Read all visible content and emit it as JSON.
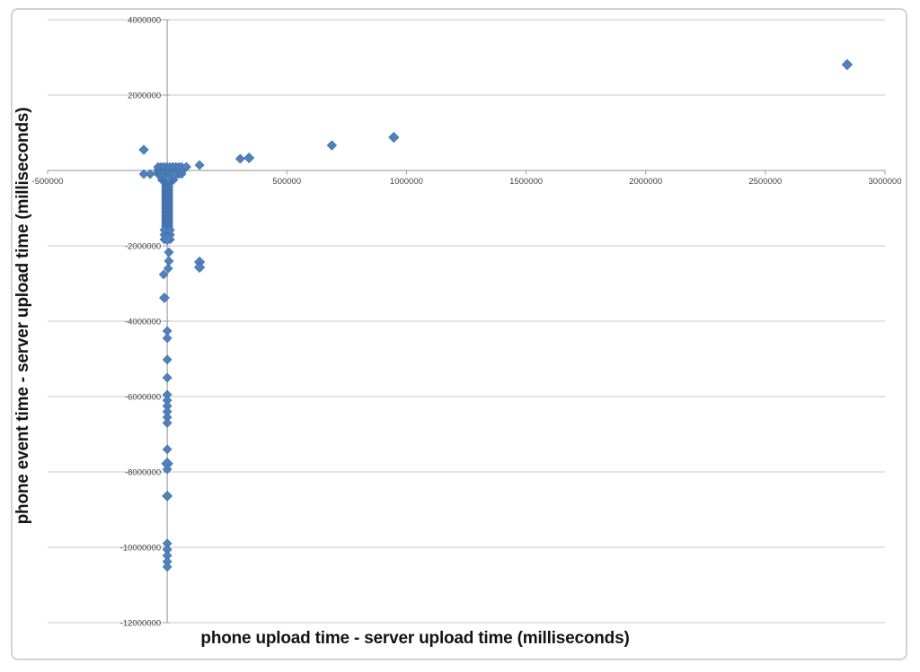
{
  "figure": {
    "background": "#ffffff",
    "frame_color": "#d2d2d2"
  },
  "chart_data": {
    "type": "scatter",
    "title": "",
    "xlabel": "phone upload time - server upload time (milliseconds)",
    "ylabel": "phone event time - server upload time (milliseconds)",
    "xlim": [
      -500000,
      3000000
    ],
    "ylim": [
      -12000000,
      4000000
    ],
    "x_ticks": [
      -500000,
      0,
      500000,
      1000000,
      1500000,
      2000000,
      2500000,
      3000000
    ],
    "y_ticks": [
      4000000,
      2000000,
      0,
      -2000000,
      -4000000,
      -6000000,
      -8000000,
      -10000000,
      -12000000
    ],
    "grid": "horizontal",
    "legend": "none",
    "marker_shape": "diamond",
    "marker_color": "#4f81bd",
    "marker_edge_color": "#3f6ea5",
    "axis_color": "#a6a6a6",
    "gridline_color": "#c9c9c9",
    "tick_label_color": "#3f3f3f",
    "points": [
      [
        -98000,
        550000,
        1.05
      ],
      [
        -98000,
        -95000,
        1
      ],
      [
        -71000,
        -95000,
        1
      ],
      [
        80000,
        95000,
        1
      ],
      [
        135000,
        143000,
        1
      ],
      [
        305000,
        310000,
        1
      ],
      [
        342000,
        333000,
        1.1
      ],
      [
        688000,
        667000,
        1.05
      ],
      [
        947000,
        880000,
        1.15
      ],
      [
        2842000,
        2810000,
        1.15
      ],
      [
        135000,
        -2430000,
        1.15
      ],
      [
        135000,
        -2570000,
        1.15
      ],
      [
        0,
        -1810000,
        1.3
      ],
      [
        7000,
        -2170000,
        1
      ],
      [
        7000,
        -2405000,
        1
      ],
      [
        4000,
        -2600000,
        1
      ],
      [
        -15000,
        -2760000,
        1
      ],
      [
        -12000,
        -3380000,
        1.1
      ],
      [
        0,
        -4260000,
        1
      ],
      [
        0,
        -4450000,
        1
      ],
      [
        0,
        -5020000,
        1
      ],
      [
        0,
        -5500000,
        1
      ],
      [
        0,
        -5950000,
        1
      ],
      [
        0,
        -6100000,
        1
      ],
      [
        0,
        -6250000,
        1
      ],
      [
        0,
        -6400000,
        1
      ],
      [
        0,
        -6550000,
        1
      ],
      [
        0,
        -6700000,
        1
      ],
      [
        0,
        -7400000,
        1
      ],
      [
        0,
        -7780000,
        1.25
      ],
      [
        0,
        -7930000,
        1
      ],
      [
        0,
        -8640000,
        1.1
      ],
      [
        0,
        -9900000,
        1
      ],
      [
        0,
        -10060000,
        1
      ],
      [
        0,
        -10220000,
        1
      ],
      [
        0,
        -10380000,
        1
      ],
      [
        0,
        -10520000,
        1
      ]
    ],
    "dense_clusters": [
      {
        "name": "origin-blob",
        "x_min": -38000,
        "x_max": 60000,
        "y_min": -95000,
        "y_max": 95000,
        "cols": 9,
        "rows": 4
      },
      {
        "name": "origin-taper",
        "x_min": -22000,
        "x_max": 26000,
        "y_min": -250000,
        "y_max": -110000,
        "cols": 5,
        "rows": 3
      },
      {
        "name": "zero-column",
        "x_min": -5000,
        "x_max": 5000,
        "y_min": -1690000,
        "y_max": -200000,
        "cols": 2,
        "rows": 45
      },
      {
        "name": "column-bulge",
        "x_min": -12000,
        "x_max": 12000,
        "y_min": -1830000,
        "y_max": -1580000,
        "cols": 2,
        "rows": 3
      }
    ]
  }
}
